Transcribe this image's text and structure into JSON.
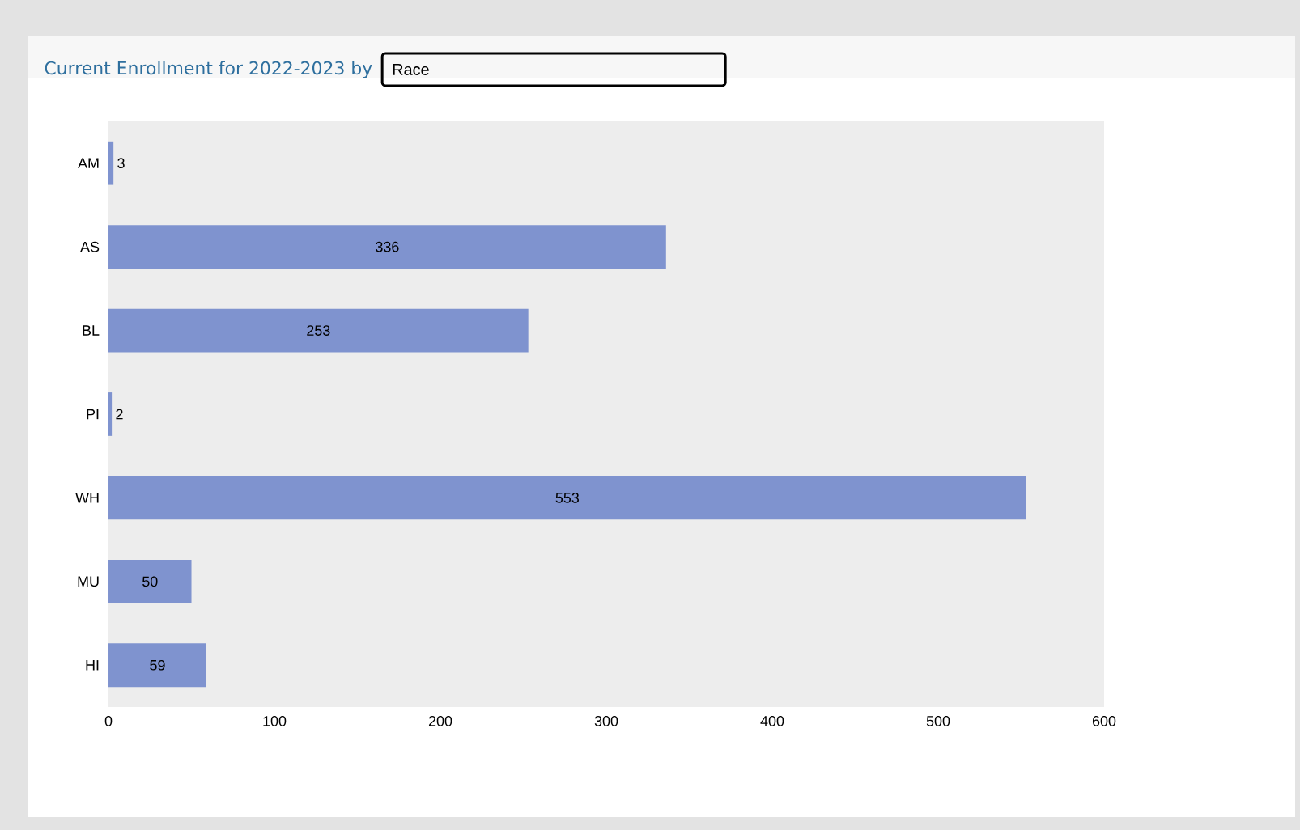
{
  "chart_data": {
    "type": "bar",
    "orientation": "horizontal",
    "title": "Current Enrollment for 2022-2023 by",
    "subtitle": "Race",
    "categories": [
      "AM",
      "AS",
      "BL",
      "PI",
      "WH",
      "MU",
      "HI"
    ],
    "values": [
      3,
      336,
      253,
      2,
      553,
      50,
      59
    ],
    "color": "#7f93cf",
    "xlim": [
      0,
      600
    ],
    "xticks": [
      0,
      100,
      200,
      300,
      400,
      500,
      600
    ],
    "data_labels": true
  }
}
